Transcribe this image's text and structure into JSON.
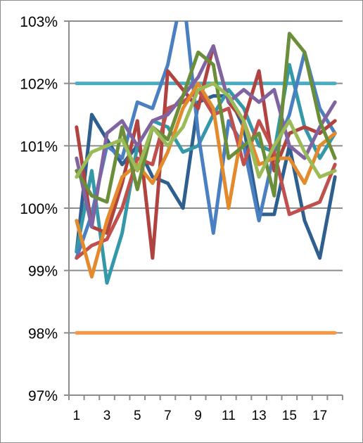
{
  "chart_data": {
    "type": "line",
    "title": "",
    "xlabel": "",
    "ylabel": "",
    "x": [
      1,
      2,
      3,
      4,
      5,
      6,
      7,
      8,
      9,
      10,
      11,
      12,
      13,
      14,
      15,
      16,
      17,
      18
    ],
    "x_tick_labels": [
      "1",
      "3",
      "5",
      "7",
      "9",
      "11",
      "13",
      "15",
      "17"
    ],
    "x_tick_values": [
      1,
      3,
      5,
      7,
      9,
      11,
      13,
      15,
      17
    ],
    "ylim": [
      97,
      103
    ],
    "y_tick_values": [
      97,
      98,
      99,
      100,
      101,
      102,
      103
    ],
    "y_tick_labels": [
      "97%",
      "98%",
      "99%",
      "100%",
      "101%",
      "102%",
      "103%"
    ],
    "grid": "horizontal",
    "legend": "none",
    "series": [
      {
        "color": "#2e5f8f",
        "values": [
          99.3,
          101.5,
          101.1,
          100.7,
          101.0,
          100.5,
          100.4,
          100.0,
          101.7,
          101.8,
          101.8,
          101.3,
          99.9,
          99.9,
          101.0,
          99.8,
          99.2,
          100.5
        ]
      },
      {
        "color": "#3498a8",
        "values": [
          99.3,
          100.6,
          98.8,
          99.6,
          101.0,
          101.4,
          101.3,
          100.9,
          101.0,
          101.5,
          101.9,
          101.6,
          101.0,
          100.9,
          102.3,
          101.3,
          100.8,
          101.2
        ]
      },
      {
        "color": "#4a7fc1",
        "values": [
          99.2,
          99.9,
          101.0,
          100.8,
          101.7,
          101.6,
          102.3,
          103.5,
          101.2,
          99.6,
          101.4,
          101.0,
          99.8,
          100.9,
          101.5,
          102.5,
          101.6,
          101.2
        ]
      },
      {
        "color": "#b0433f",
        "values": [
          101.3,
          99.7,
          99.6,
          100.4,
          101.4,
          99.2,
          102.2,
          101.9,
          101.6,
          102.6,
          101.7,
          101.4,
          102.2,
          100.6,
          101.2,
          101.3,
          101.2,
          101.4
        ]
      },
      {
        "color": "#c0504d",
        "values": [
          99.2,
          99.4,
          99.5,
          100.0,
          100.8,
          100.7,
          101.6,
          101.7,
          101.9,
          101.5,
          101.6,
          100.7,
          101.4,
          100.9,
          99.9,
          100.0,
          100.1,
          100.7
        ]
      },
      {
        "color": "#e28a2c",
        "values": [
          99.8,
          98.9,
          99.8,
          100.5,
          100.7,
          100.4,
          100.9,
          101.6,
          102.0,
          101.6,
          100.0,
          101.4,
          100.7,
          100.8,
          100.8,
          100.4,
          101.0,
          101.2
        ]
      },
      {
        "color": "#8064a2",
        "values": [
          100.8,
          99.7,
          101.2,
          101.4,
          101.0,
          101.4,
          101.5,
          101.8,
          102.1,
          102.6,
          101.7,
          101.9,
          101.7,
          101.9,
          101.0,
          100.8,
          101.3,
          101.7
        ]
      },
      {
        "color": "#6a8e3a",
        "values": [
          100.6,
          100.2,
          100.1,
          101.3,
          100.3,
          101.3,
          101.1,
          101.8,
          102.5,
          102.3,
          100.8,
          101.0,
          101.2,
          100.2,
          102.8,
          102.5,
          101.4,
          100.8
        ]
      },
      {
        "color": "#9bbb59",
        "values": [
          100.5,
          100.9,
          101.0,
          101.1,
          100.6,
          101.3,
          101.0,
          101.3,
          101.9,
          102.0,
          101.8,
          101.4,
          100.5,
          101.0,
          101.4,
          100.9,
          100.5,
          100.6
        ]
      }
    ],
    "reference_lines": [
      {
        "value": 102,
        "color": "#4bacc6"
      },
      {
        "value": 98,
        "color": "#f79646"
      }
    ]
  }
}
